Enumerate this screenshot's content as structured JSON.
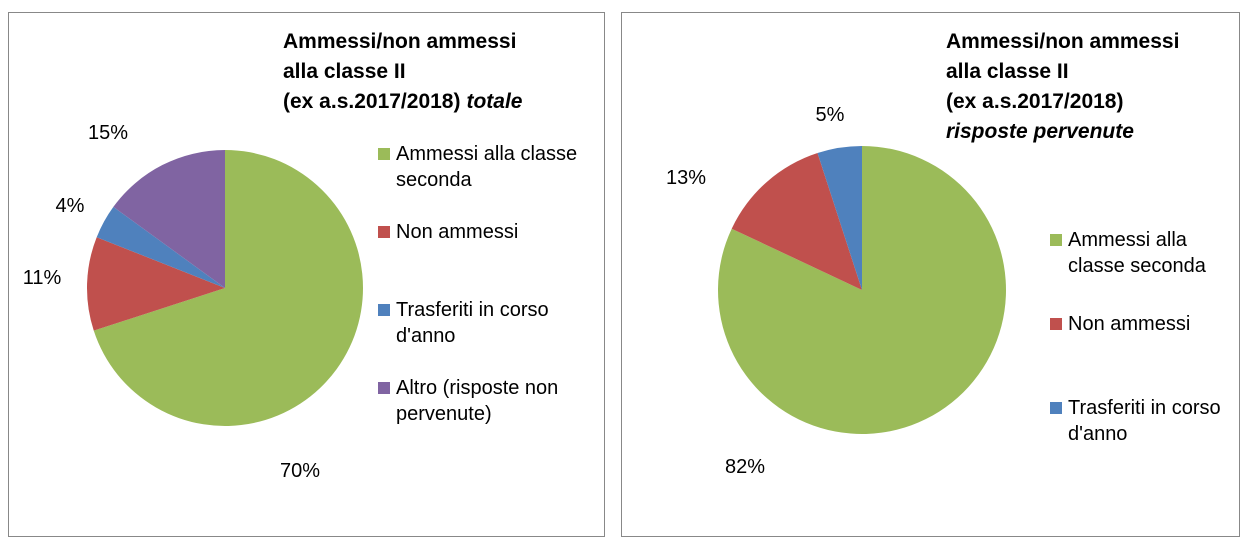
{
  "chart_data": [
    {
      "type": "pie",
      "title": [
        "Ammessi/non ammessi",
        "alla classe II",
        "(ex a.s.2017/2018)"
      ],
      "subtitle": "totale",
      "categories": [
        "Ammessi alla classe seconda",
        "Non ammessi",
        "Trasferiti in corso d'anno",
        "Altro (risposte non pervenute)"
      ],
      "values": [
        70,
        11,
        4,
        15
      ],
      "value_labels": [
        "70%",
        "11%",
        "4%",
        "15%"
      ],
      "colors": [
        "#9bbb59",
        "#c0504d",
        "#4f81bd",
        "#8064a2"
      ],
      "legend": "right"
    },
    {
      "type": "pie",
      "title": [
        "Ammessi/non ammessi",
        "alla classe II",
        "(ex a.s.2017/2018)"
      ],
      "subtitle": "risposte pervenute",
      "categories": [
        "Ammessi alla classe seconda",
        "Non ammessi",
        "Trasferiti in corso d'anno"
      ],
      "values": [
        82,
        13,
        5
      ],
      "value_labels": [
        "82%",
        "13%",
        "5%"
      ],
      "colors": [
        "#9bbb59",
        "#c0504d",
        "#4f81bd"
      ],
      "legend": "right"
    }
  ]
}
